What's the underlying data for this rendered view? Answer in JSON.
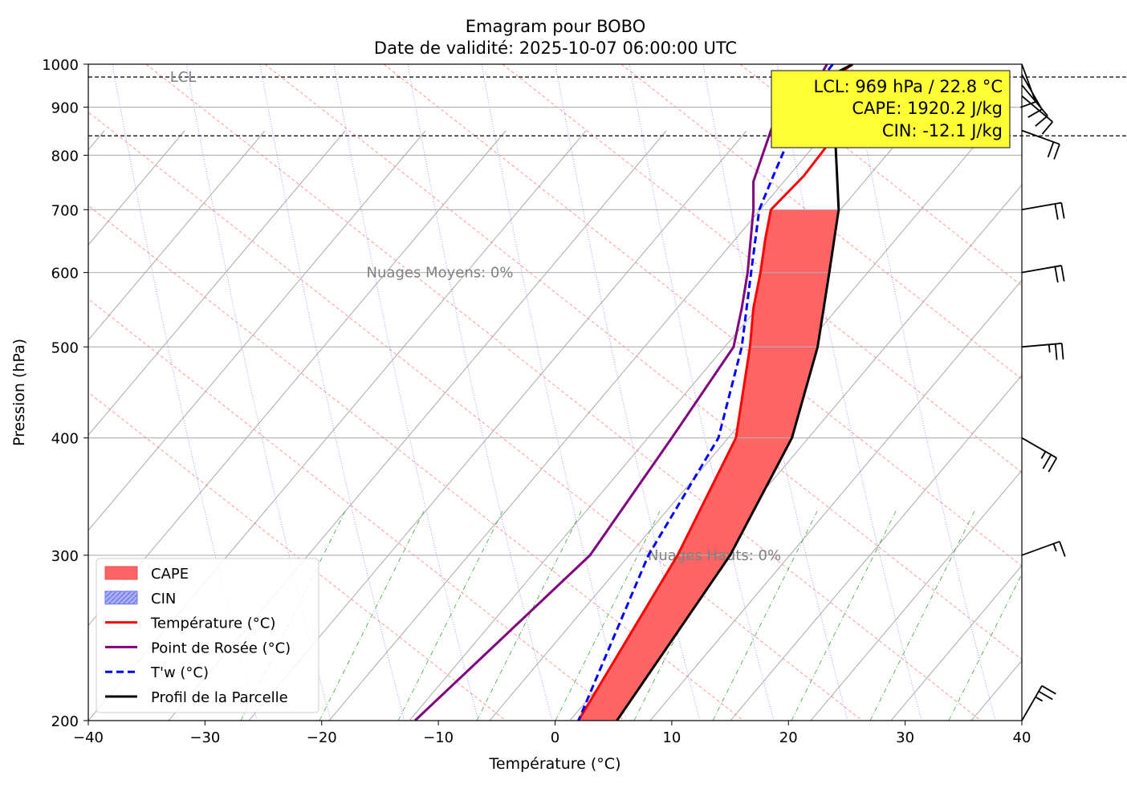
{
  "chart_data": {
    "type": "line",
    "title": "Emagram pour BOBO",
    "subtitle": "Date de validité: 2025-10-07 06:00:00 UTC",
    "xlabel": "Température (°C)",
    "ylabel": "Pression (hPa)",
    "xlim": [
      -40,
      40
    ],
    "ylim": [
      1000,
      200
    ],
    "y_scale": "log",
    "grid": true,
    "x_ticks": [
      "−40",
      "−30",
      "−20",
      "−10",
      "0",
      "10",
      "20",
      "30",
      "40"
    ],
    "y_ticks": [
      "1000",
      "900",
      "800",
      "700",
      "600",
      "500",
      "400",
      "300",
      "200"
    ],
    "legend_position": "lower-left",
    "info_box": {
      "lines": [
        "LCL: 969 hPa / 22.8 °C",
        "CAPE: 1920.2 J/kg",
        "CIN: -12.1 J/kg"
      ],
      "background": "#ffff33"
    },
    "annotations": [
      {
        "text": "Nuages Hauts: 0%",
        "p": 300
      },
      {
        "text": "Nuages Moyens: 0%",
        "p": 600
      },
      {
        "text": "LCL",
        "p": 969
      }
    ],
    "reference_lines_hpa": [
      839,
      969
    ],
    "legend": [
      {
        "label": "CAPE",
        "color": "#ff6464",
        "kind": "patch"
      },
      {
        "label": "CIN",
        "color": "#aab0f8",
        "kind": "hatched"
      },
      {
        "label": "Température (°C)",
        "color": "#ff0000",
        "kind": "line"
      },
      {
        "label": "Point de Rosée (°C)",
        "color": "#800080",
        "kind": "line"
      },
      {
        "label": "T'w (°C)",
        "color": "#0000ff",
        "kind": "dashed"
      },
      {
        "label": "Profil de la Parcelle",
        "color": "#000000",
        "kind": "line"
      }
    ],
    "series": [
      {
        "name": "Température (°C)",
        "color": "#ff0000",
        "points": [
          [
            25.5,
            1000
          ],
          [
            24.5,
            980
          ],
          [
            24.8,
            965
          ],
          [
            25.3,
            940
          ],
          [
            24.8,
            900
          ],
          [
            24.0,
            840
          ],
          [
            21.3,
            760
          ],
          [
            18.5,
            700
          ],
          [
            18.0,
            650
          ],
          [
            17.6,
            600
          ],
          [
            17.0,
            550
          ],
          [
            16.7,
            500
          ],
          [
            15.5,
            400
          ],
          [
            10.5,
            300
          ],
          [
            2.0,
            200
          ]
        ]
      },
      {
        "name": "Point de Rosée (°C)",
        "color": "#800080",
        "points": [
          [
            23.3,
            1000
          ],
          [
            22.5,
            960
          ],
          [
            20.5,
            920
          ],
          [
            19.0,
            880
          ],
          [
            18.5,
            850
          ],
          [
            17.0,
            750
          ],
          [
            17.0,
            700
          ],
          [
            16.5,
            600
          ],
          [
            16.0,
            550
          ],
          [
            15.3,
            500
          ],
          [
            10.0,
            400
          ],
          [
            3.0,
            300
          ],
          [
            -12.0,
            200
          ]
        ]
      },
      {
        "name": "T'w (°C)",
        "color": "#0000ff",
        "points": [
          [
            23.8,
            1000
          ],
          [
            22.7,
            960
          ],
          [
            21.5,
            920
          ],
          [
            20.8,
            880
          ],
          [
            20.0,
            830
          ],
          [
            18.5,
            750
          ],
          [
            17.5,
            700
          ],
          [
            16.8,
            600
          ],
          [
            16.0,
            500
          ],
          [
            14.0,
            400
          ],
          [
            8.0,
            300
          ],
          [
            2.0,
            200
          ]
        ]
      },
      {
        "name": "Profil de la Parcelle",
        "color": "#000000",
        "points": [
          [
            25.5,
            1000
          ],
          [
            24.0,
            978
          ],
          [
            23.9,
            940
          ],
          [
            24.0,
            839
          ],
          [
            24.3,
            700
          ],
          [
            23.5,
            600
          ],
          [
            22.5,
            500
          ],
          [
            20.3,
            400
          ],
          [
            15.0,
            300
          ],
          [
            5.3,
            200
          ]
        ]
      }
    ],
    "cape_region": {
      "p_top": 200,
      "p_bottom": 700
    },
    "cin_region": {
      "p_top": 839,
      "p_bottom": 969
    },
    "wind_barbs": [
      {
        "p": 200,
        "speed_kt": 15,
        "dir_deg": 210
      },
      {
        "p": 300,
        "speed_kt": 5,
        "dir_deg": 250
      },
      {
        "p": 400,
        "speed_kt": 15,
        "dir_deg": 300
      },
      {
        "p": 500,
        "speed_kt": 15,
        "dir_deg": 265
      },
      {
        "p": 600,
        "speed_kt": 20,
        "dir_deg": 260
      },
      {
        "p": 700,
        "speed_kt": 20,
        "dir_deg": 260
      },
      {
        "p": 850,
        "speed_kt": 20,
        "dir_deg": 290
      },
      {
        "p": 925,
        "speed_kt": 10,
        "dir_deg": 310
      },
      {
        "p": 950,
        "speed_kt": 10,
        "dir_deg": 320
      },
      {
        "p": 975,
        "speed_kt": 10,
        "dir_deg": 330
      },
      {
        "p": 1000,
        "speed_kt": 10,
        "dir_deg": 340
      }
    ]
  }
}
